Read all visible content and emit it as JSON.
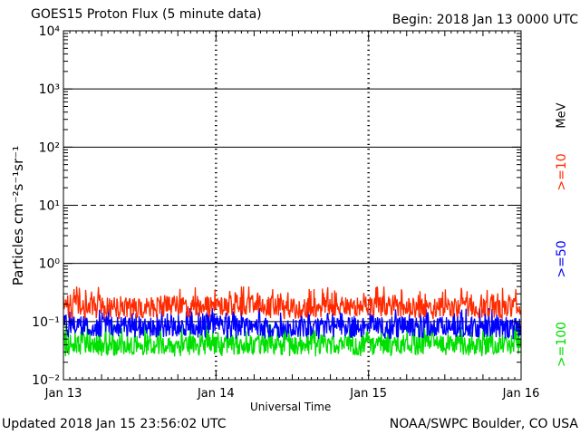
{
  "header": {
    "title": "GOES15 Proton Flux (5 minute data)",
    "begin": "Begin: 2018 Jan 13 0000 UTC"
  },
  "footer": {
    "updated": "Updated 2018 Jan 15 23:56:02 UTC",
    "credit": "NOAA/SWPC Boulder, CO USA"
  },
  "legend": {
    "unit": "MeV",
    "entries": [
      {
        "label": ">=10",
        "color": "#ff2a00"
      },
      {
        "label": ">=50",
        "color": "#0000ff"
      },
      {
        "label": ">=100",
        "color": "#00e000"
      }
    ]
  },
  "chart_data": {
    "type": "line",
    "title": "GOES15 Proton Flux (5 minute data)",
    "xlabel": "Universal Time",
    "ylabel": "Particles cm⁻²s⁻¹sr⁻¹",
    "yscale": "log",
    "ylim": [
      0.01,
      10000
    ],
    "ytick_labels": [
      "10⁻²",
      "10⁻¹",
      "10⁰",
      "10¹",
      "10²",
      "10³",
      "10⁴"
    ],
    "x_categories": [
      "Jan 13",
      "Jan 14",
      "Jan 15",
      "Jan 16"
    ],
    "xlim": [
      "2018-01-13 00:00",
      "2018-01-16 00:00"
    ],
    "grid": true,
    "series": [
      {
        "name": ">=10",
        "color": "#ff2a00",
        "typical": 0.18,
        "range": [
          0.11,
          0.4
        ],
        "x": [
          "2018-01-13 00:00",
          "2018-01-13 06:00",
          "2018-01-13 12:00",
          "2018-01-13 18:00",
          "2018-01-14 00:00",
          "2018-01-14 06:00",
          "2018-01-14 12:00",
          "2018-01-14 18:00",
          "2018-01-15 00:00",
          "2018-01-15 06:00",
          "2018-01-15 12:00",
          "2018-01-15 18:00",
          "2018-01-16 00:00"
        ],
        "y": [
          0.2,
          0.18,
          0.17,
          0.19,
          0.18,
          0.2,
          0.17,
          0.18,
          0.19,
          0.17,
          0.18,
          0.17,
          0.18
        ]
      },
      {
        "name": ">=50",
        "color": "#0000ff",
        "typical": 0.08,
        "range": [
          0.05,
          0.17
        ],
        "x": [
          "2018-01-13 00:00",
          "2018-01-13 06:00",
          "2018-01-13 12:00",
          "2018-01-13 18:00",
          "2018-01-14 00:00",
          "2018-01-14 06:00",
          "2018-01-14 12:00",
          "2018-01-14 18:00",
          "2018-01-15 00:00",
          "2018-01-15 06:00",
          "2018-01-15 12:00",
          "2018-01-15 18:00",
          "2018-01-16 00:00"
        ],
        "y": [
          0.09,
          0.08,
          0.08,
          0.08,
          0.09,
          0.08,
          0.08,
          0.08,
          0.08,
          0.08,
          0.08,
          0.08,
          0.08
        ]
      },
      {
        "name": ">=100",
        "color": "#00e000",
        "typical": 0.04,
        "range": [
          0.025,
          0.09
        ],
        "x": [
          "2018-01-13 00:00",
          "2018-01-13 06:00",
          "2018-01-13 12:00",
          "2018-01-13 18:00",
          "2018-01-14 00:00",
          "2018-01-14 06:00",
          "2018-01-14 12:00",
          "2018-01-14 18:00",
          "2018-01-15 00:00",
          "2018-01-15 06:00",
          "2018-01-15 12:00",
          "2018-01-15 18:00",
          "2018-01-16 00:00"
        ],
        "y": [
          0.045,
          0.04,
          0.04,
          0.042,
          0.04,
          0.04,
          0.041,
          0.04,
          0.04,
          0.04,
          0.04,
          0.04,
          0.04
        ]
      }
    ],
    "reference_lines": [
      {
        "value": 10,
        "style": "dashed"
      }
    ]
  }
}
